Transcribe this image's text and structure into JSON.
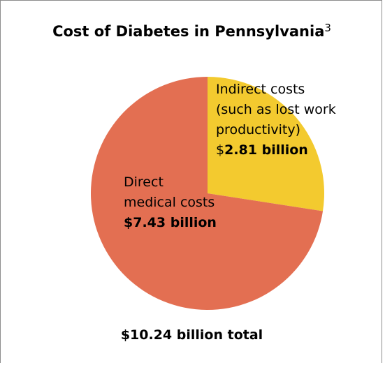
{
  "chart_data": {
    "type": "pie",
    "title": "Cost of Diabetes in Pennsylvania",
    "title_superscript": "3",
    "unit": "billion",
    "total_label": "$10.24 billion total",
    "slices": [
      {
        "key": "indirect",
        "label_lines": [
          "Indirect costs",
          "(such as lost work",
          "productivity)"
        ],
        "value": 2.81,
        "value_prefix": "$",
        "value_text": "2.81 billion",
        "color": "#f3ca2f"
      },
      {
        "key": "direct",
        "label_lines": [
          "Direct",
          "medical costs"
        ],
        "value": 7.43,
        "value_prefix": "",
        "value_text": "$7.43 billion",
        "color": "#e36f52"
      }
    ]
  }
}
